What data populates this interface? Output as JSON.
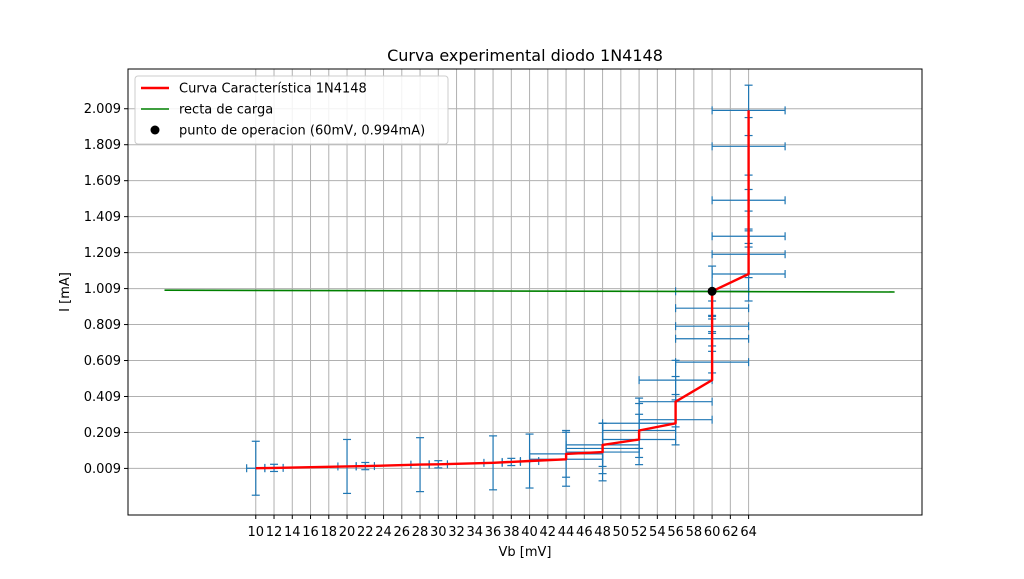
{
  "chart_data": {
    "type": "line",
    "title": "Curva experimental diodo 1N4148",
    "xlabel": "Vb [mV]",
    "ylabel": "I [mA]",
    "xlim": [
      -4,
      83
    ],
    "ylim": [
      -0.25,
      2.23
    ],
    "grid": true,
    "legend_position": "top-left",
    "x_ticks": [
      10,
      12,
      14,
      16,
      18,
      20,
      22,
      24,
      26,
      28,
      30,
      32,
      34,
      36,
      38,
      40,
      42,
      44,
      46,
      48,
      50,
      52,
      54,
      56,
      58,
      60,
      62,
      64
    ],
    "y_ticks": [
      0.009,
      0.209,
      0.409,
      0.609,
      0.809,
      1.009,
      1.209,
      1.409,
      1.609,
      1.809,
      2.009
    ],
    "series": [
      {
        "name": "Curva Característica 1N4148",
        "kind": "line",
        "color": "#ff0000",
        "x": [
          10,
          12,
          20,
          22,
          28,
          30,
          36,
          38,
          40,
          44,
          44,
          48,
          48,
          52,
          52,
          56,
          56,
          60,
          60,
          60,
          64,
          64,
          64,
          64,
          64,
          64
        ],
        "y": [
          0.01,
          0.012,
          0.02,
          0.022,
          0.03,
          0.032,
          0.04,
          0.045,
          0.05,
          0.06,
          0.09,
          0.1,
          0.14,
          0.17,
          0.22,
          0.26,
          0.38,
          0.5,
          0.6,
          0.994,
          1.09,
          1.2,
          1.3,
          1.5,
          1.8,
          2.0
        ]
      },
      {
        "name": "recta de carga",
        "kind": "line",
        "color": "#008000",
        "x": [
          0,
          80
        ],
        "y": [
          1.0,
          0.99
        ]
      },
      {
        "name": "punto de operacion (60mV, 0.994mA)",
        "kind": "point",
        "color": "#000000",
        "x": [
          60
        ],
        "y": [
          0.994
        ]
      }
    ],
    "error_bars": {
      "color": "#1f77b4",
      "points": [
        {
          "x": 10,
          "y": 0.01,
          "xerr": 1,
          "yerr": 0.15
        },
        {
          "x": 12,
          "y": 0.012,
          "xerr": 1,
          "yerr": 0.02
        },
        {
          "x": 20,
          "y": 0.02,
          "xerr": 1,
          "yerr": 0.15
        },
        {
          "x": 22,
          "y": 0.022,
          "xerr": 1,
          "yerr": 0.02
        },
        {
          "x": 28,
          "y": 0.03,
          "xerr": 1,
          "yerr": 0.15
        },
        {
          "x": 30,
          "y": 0.032,
          "xerr": 1,
          "yerr": 0.02
        },
        {
          "x": 36,
          "y": 0.04,
          "xerr": 1,
          "yerr": 0.15
        },
        {
          "x": 38,
          "y": 0.045,
          "xerr": 1,
          "yerr": 0.02
        },
        {
          "x": 40,
          "y": 0.05,
          "xerr": 1,
          "yerr": 0.15
        },
        {
          "x": 44,
          "y": 0.06,
          "xerr": 4,
          "yerr": 0.15
        },
        {
          "x": 44,
          "y": 0.09,
          "xerr": 4,
          "yerr": 0.13
        },
        {
          "x": 48,
          "y": 0.1,
          "xerr": 4,
          "yerr": 0.16
        },
        {
          "x": 48,
          "y": 0.12,
          "xerr": 4,
          "yerr": 0.14
        },
        {
          "x": 48,
          "y": 0.14,
          "xerr": 4,
          "yerr": 0.12
        },
        {
          "x": 52,
          "y": 0.17,
          "xerr": 4,
          "yerr": 0.14
        },
        {
          "x": 52,
          "y": 0.22,
          "xerr": 4,
          "yerr": 0.15
        },
        {
          "x": 52,
          "y": 0.26,
          "xerr": 4,
          "yerr": 0.14
        },
        {
          "x": 56,
          "y": 0.28,
          "xerr": 4,
          "yerr": 0.14
        },
        {
          "x": 56,
          "y": 0.38,
          "xerr": 4,
          "yerr": 0.14
        },
        {
          "x": 56,
          "y": 0.5,
          "xerr": 4,
          "yerr": 0.11
        },
        {
          "x": 60,
          "y": 0.6,
          "xerr": 4,
          "yerr": 0.06
        },
        {
          "x": 60,
          "y": 0.73,
          "xerr": 4,
          "yerr": 0.04
        },
        {
          "x": 60,
          "y": 0.8,
          "xerr": 4,
          "yerr": 0.04
        },
        {
          "x": 60,
          "y": 0.9,
          "xerr": 4,
          "yerr": 0.04
        },
        {
          "x": 60,
          "y": 0.994,
          "xerr": 4,
          "yerr": 0.14
        },
        {
          "x": 64,
          "y": 1.09,
          "xerr": 4,
          "yerr": 0.15
        },
        {
          "x": 64,
          "y": 1.2,
          "xerr": 4,
          "yerr": 0.13
        },
        {
          "x": 64,
          "y": 1.3,
          "xerr": 4,
          "yerr": 0.04
        },
        {
          "x": 64,
          "y": 1.5,
          "xerr": 4,
          "yerr": 0.06
        },
        {
          "x": 64,
          "y": 1.8,
          "xerr": 4,
          "yerr": 0.16
        },
        {
          "x": 64,
          "y": 2.0,
          "xerr": 4,
          "yerr": 0.14
        }
      ]
    }
  }
}
